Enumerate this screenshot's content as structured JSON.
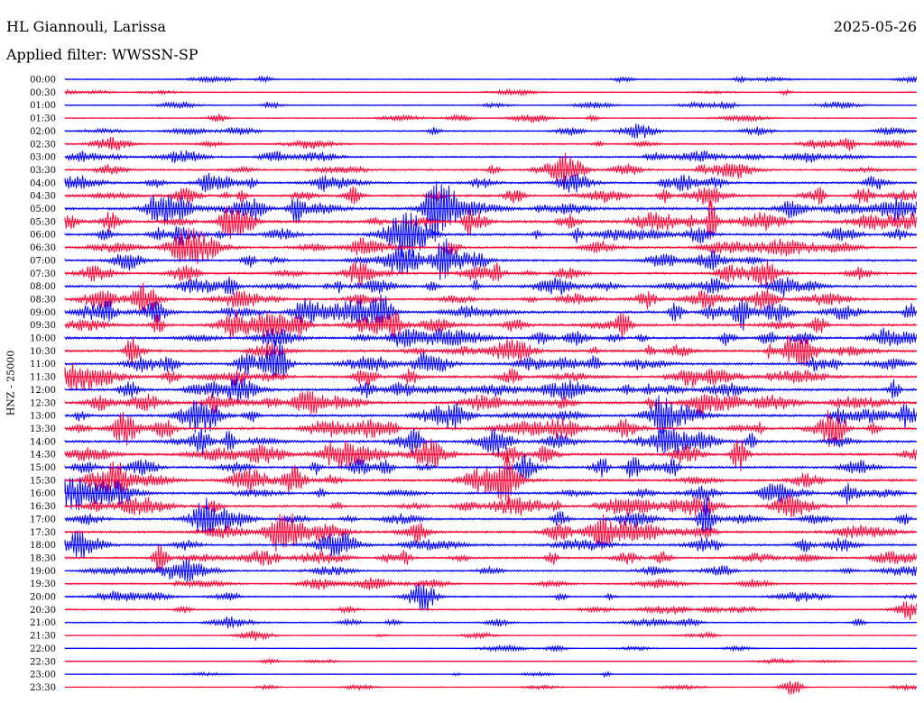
{
  "header": {
    "station": "HL Giannouli, Larissa",
    "date": "2025-05-26",
    "filter_label": "Applied filter: WWSSN-SP"
  },
  "chart_data": {
    "type": "line",
    "title": "",
    "ylabel": "HNZ - 25000",
    "xlabel": "",
    "grid": false,
    "legend": "none",
    "colors": [
      "#0000ff",
      "#ff0033"
    ],
    "rows": [
      {
        "label": "00:00",
        "activity": 0.15
      },
      {
        "label": "00:30",
        "activity": 0.15
      },
      {
        "label": "01:00",
        "activity": 0.2
      },
      {
        "label": "01:30",
        "activity": 0.2
      },
      {
        "label": "02:00",
        "activity": 0.35
      },
      {
        "label": "02:30",
        "activity": 0.4
      },
      {
        "label": "03:00",
        "activity": 0.45
      },
      {
        "label": "03:30",
        "activity": 0.45
      },
      {
        "label": "04:00",
        "activity": 0.6
      },
      {
        "label": "04:30",
        "activity": 0.7
      },
      {
        "label": "05:00",
        "activity": 0.9
      },
      {
        "label": "05:30",
        "activity": 0.9
      },
      {
        "label": "06:00",
        "activity": 0.75
      },
      {
        "label": "06:30",
        "activity": 0.65
      },
      {
        "label": "07:00",
        "activity": 0.65
      },
      {
        "label": "07:30",
        "activity": 0.65
      },
      {
        "label": "08:00",
        "activity": 0.7
      },
      {
        "label": "08:30",
        "activity": 0.7
      },
      {
        "label": "09:00",
        "activity": 0.85
      },
      {
        "label": "09:30",
        "activity": 0.8
      },
      {
        "label": "10:00",
        "activity": 0.8
      },
      {
        "label": "10:30",
        "activity": 0.8
      },
      {
        "label": "11:00",
        "activity": 0.8
      },
      {
        "label": "11:30",
        "activity": 0.85
      },
      {
        "label": "12:00",
        "activity": 0.85
      },
      {
        "label": "12:30",
        "activity": 0.85
      },
      {
        "label": "13:00",
        "activity": 0.8
      },
      {
        "label": "13:30",
        "activity": 0.8
      },
      {
        "label": "14:00",
        "activity": 0.8
      },
      {
        "label": "14:30",
        "activity": 0.8
      },
      {
        "label": "15:00",
        "activity": 0.75
      },
      {
        "label": "15:30",
        "activity": 0.75
      },
      {
        "label": "16:00",
        "activity": 0.7
      },
      {
        "label": "16:30",
        "activity": 0.7
      },
      {
        "label": "17:00",
        "activity": 0.65
      },
      {
        "label": "17:30",
        "activity": 0.7
      },
      {
        "label": "18:00",
        "activity": 0.65
      },
      {
        "label": "18:30",
        "activity": 0.6
      },
      {
        "label": "19:00",
        "activity": 0.5
      },
      {
        "label": "19:30",
        "activity": 0.4
      },
      {
        "label": "20:00",
        "activity": 0.35
      },
      {
        "label": "20:30",
        "activity": 0.35
      },
      {
        "label": "21:00",
        "activity": 0.3
      },
      {
        "label": "21:30",
        "activity": 0.15
      },
      {
        "label": "22:00",
        "activity": 0.1
      },
      {
        "label": "22:30",
        "activity": 0.1
      },
      {
        "label": "23:00",
        "activity": 0.1
      },
      {
        "label": "23:30",
        "activity": 0.1
      }
    ]
  }
}
